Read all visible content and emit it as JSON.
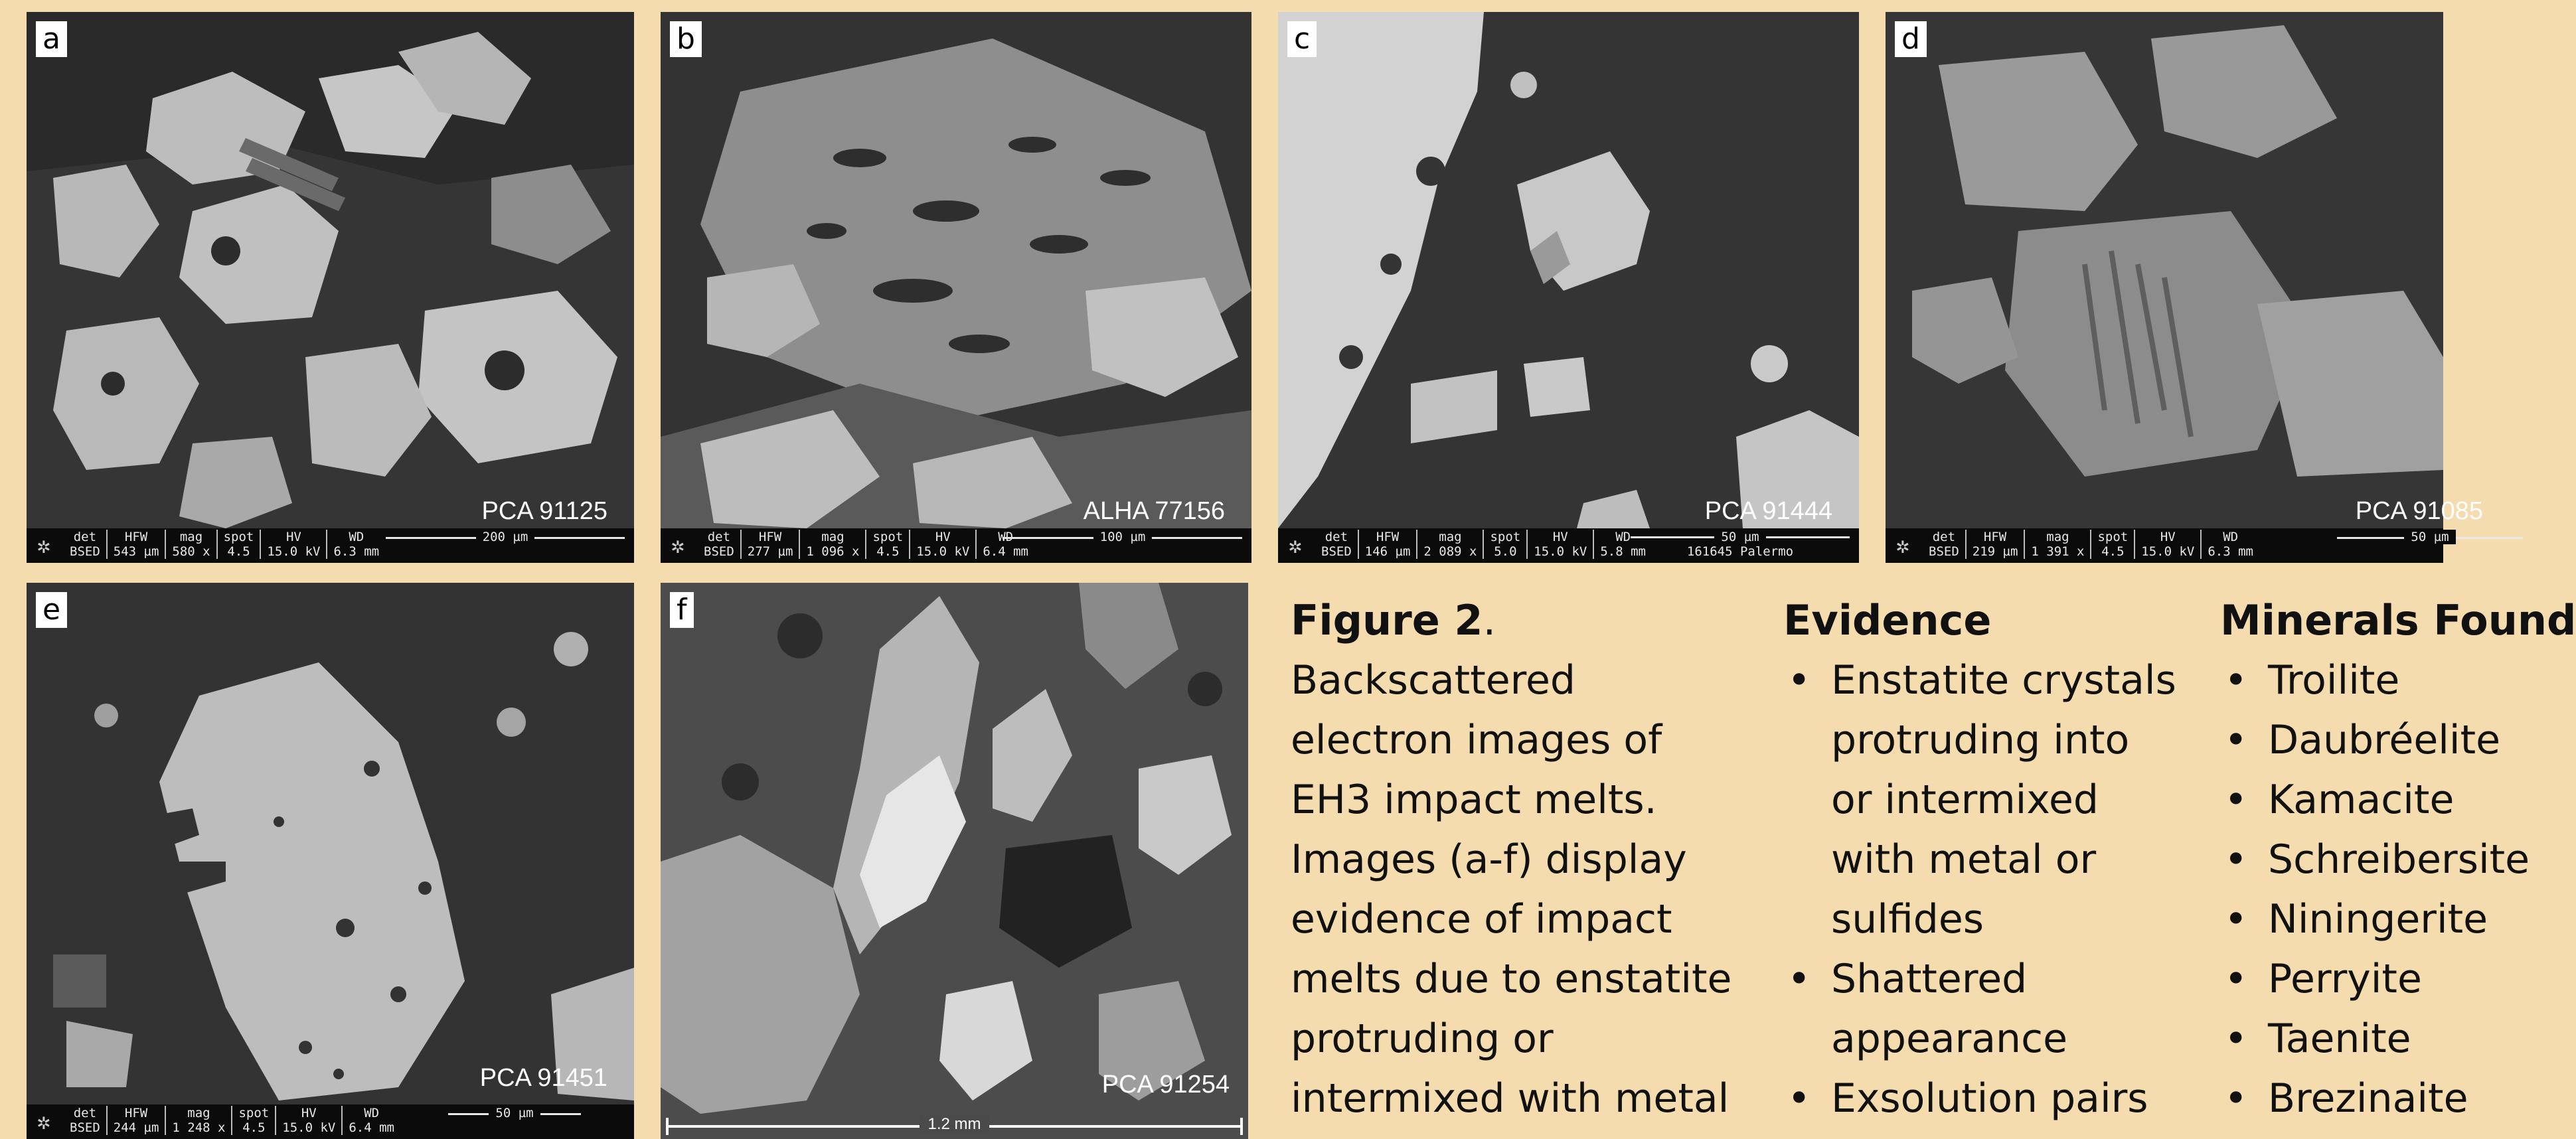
{
  "panels": [
    {
      "letter": "a",
      "sample": "PCA 91125",
      "databar": {
        "headers": [
          "det",
          "HFW",
          "mag",
          "spot",
          "HV",
          "WD"
        ],
        "values": [
          "BSED",
          "543 µm",
          "580 x",
          "4.5",
          "15.0 kV",
          "6.3 mm"
        ],
        "scale": "200 µm",
        "extra": ""
      }
    },
    {
      "letter": "b",
      "sample": "ALHA 77156",
      "databar": {
        "headers": [
          "det",
          "HFW",
          "mag",
          "spot",
          "HV",
          "WD"
        ],
        "values": [
          "BSED",
          "277 µm",
          "1 096 x",
          "4.5",
          "15.0 kV",
          "6.4 mm"
        ],
        "scale": "100 µm",
        "extra": ""
      }
    },
    {
      "letter": "c",
      "sample": "PCA 91444",
      "databar": {
        "headers": [
          "det",
          "HFW",
          "mag",
          "spot",
          "HV",
          "WD"
        ],
        "values": [
          "BSED",
          "146 µm",
          "2 089 x",
          "5.0",
          "15.0 kV",
          "5.8 mm"
        ],
        "scale": "50 µm",
        "extra": "161645 Palermo"
      }
    },
    {
      "letter": "d",
      "sample": "PCA 91085",
      "databar": {
        "headers": [
          "det",
          "HFW",
          "mag",
          "spot",
          "HV",
          "WD"
        ],
        "values": [
          "BSED",
          "219 µm",
          "1 391 x",
          "4.5",
          "15.0 kV",
          "6.3 mm"
        ],
        "scale": "50 µm",
        "extra": ""
      }
    },
    {
      "letter": "e",
      "sample": "PCA 91451",
      "databar": {
        "headers": [
          "det",
          "HFW",
          "mag",
          "spot",
          "HV",
          "WD"
        ],
        "values": [
          "BSED",
          "244 µm",
          "1 248 x",
          "4.5",
          "15.0 kV",
          "6.4 mm"
        ],
        "scale": "50 µm",
        "extra": ""
      }
    },
    {
      "letter": "f",
      "sample": "PCA 91254",
      "scale": "1.2 mm"
    }
  ],
  "caption": {
    "label": "Figure 2",
    "lines": [
      "Backscattered",
      "electron images of",
      "EH3 impact melts.",
      "Images (a-f) display",
      "evidence of impact",
      "melts due to enstatite",
      "protruding or",
      "intermixed with metal"
    ]
  },
  "evidence": {
    "title": "Evidence",
    "items": [
      {
        "lines": [
          "Enstatite crystals",
          "protruding into",
          "or intermixed",
          "with metal or",
          "sulfides"
        ]
      },
      {
        "lines": [
          "Shattered",
          "appearance"
        ]
      },
      {
        "lines": [
          "Exsolution pairs"
        ]
      }
    ]
  },
  "minerals": {
    "title": "Minerals Found",
    "items": [
      "Troilite",
      "Daubréelite",
      "Kamacite",
      "Schreibersite",
      "Niningerite",
      "Perryite",
      "Taenite",
      "Brezinaite"
    ]
  },
  "colors": {
    "background": "#f4dcae",
    "matrix": "#2f2f2f",
    "metal": "#c4c4c4",
    "sulfide": "#8f8f8f"
  }
}
